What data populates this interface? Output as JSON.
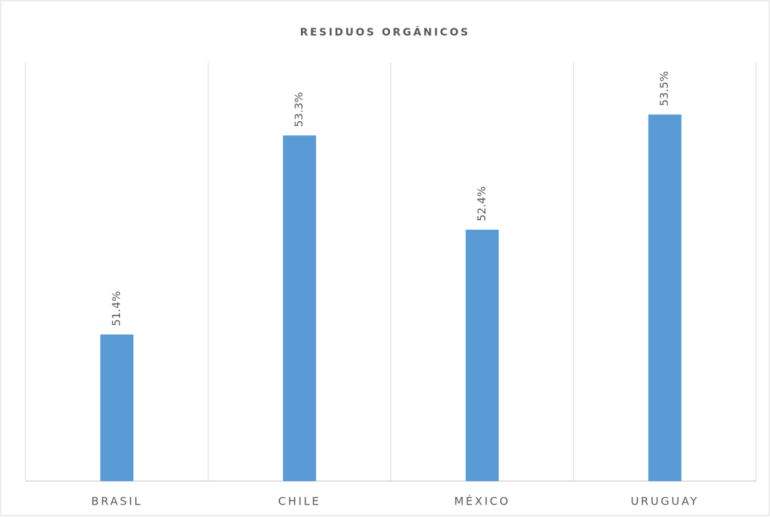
{
  "chart_data": {
    "type": "bar",
    "title": "RESIDUOS ORGÁNICOS",
    "categories": [
      "BRASIL",
      "CHILE",
      "MÉXICO",
      "URUGUAY"
    ],
    "values": [
      51.4,
      53.3,
      52.4,
      53.5
    ],
    "value_labels": [
      "51.4%",
      "53.3%",
      "52.4%",
      "53.5%"
    ],
    "color": "#5b9bd5",
    "ylim": [
      50,
      54
    ]
  }
}
